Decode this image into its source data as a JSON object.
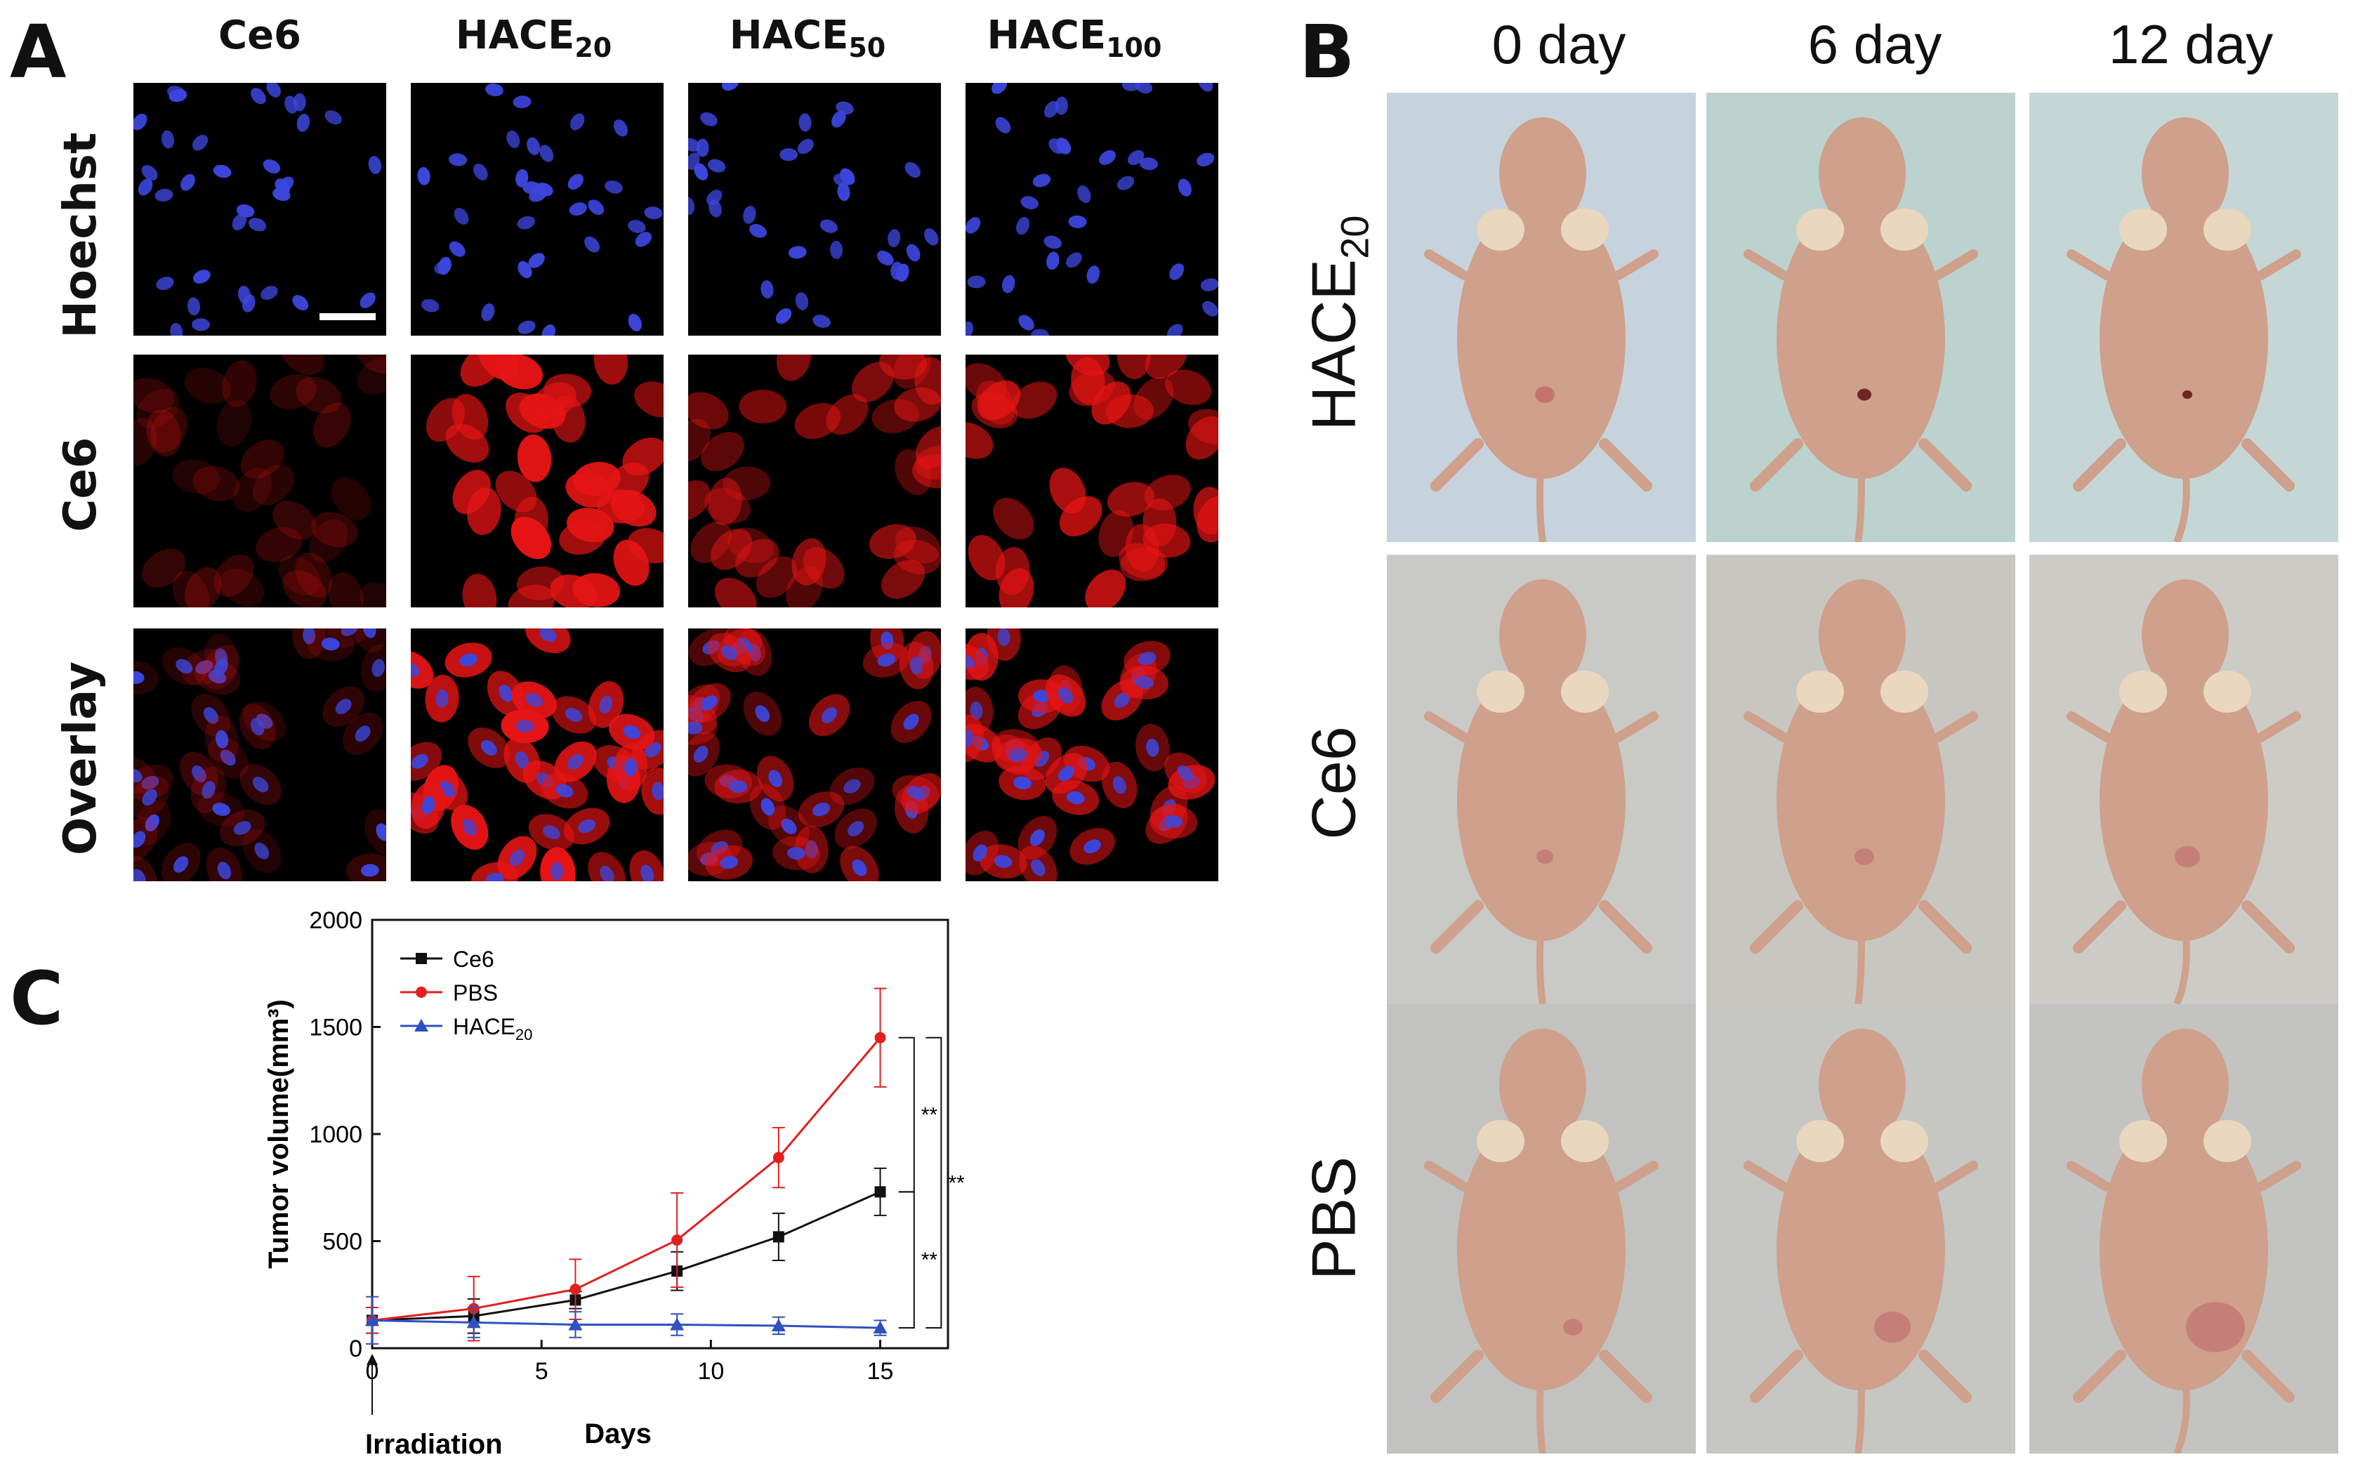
{
  "panels": {
    "a": "A",
    "b": "B",
    "c": "C"
  },
  "panel_a": {
    "columns": [
      {
        "base": "Ce6",
        "sub": ""
      },
      {
        "base": "HACE",
        "sub": "20"
      },
      {
        "base": "HACE",
        "sub": "50"
      },
      {
        "base": "HACE",
        "sub": "100"
      }
    ],
    "rows": [
      "Hoechst",
      "Ce6",
      "Overlay"
    ]
  },
  "panel_b": {
    "days": [
      "0 day",
      "6 day",
      "12 day"
    ],
    "rows": [
      {
        "base": "HACE",
        "sub": "20"
      },
      {
        "base": "Ce6",
        "sub": ""
      },
      {
        "base": "PBS",
        "sub": ""
      }
    ]
  },
  "chart_data": {
    "type": "line",
    "xlabel": "Days",
    "ylabel": "Tumor volume(mm³)",
    "xlim": [
      0,
      17
    ],
    "ylim": [
      0,
      2000
    ],
    "x_ticks": [
      0,
      5,
      10,
      15
    ],
    "y_ticks": [
      0,
      500,
      1000,
      1500,
      2000
    ],
    "annotation": "Irradiation",
    "significance": [
      "**",
      "**",
      "**"
    ],
    "legend_position": "top-left",
    "x": [
      0,
      3,
      6,
      9,
      12,
      15
    ],
    "series": [
      {
        "name": "Ce6",
        "name_sub": "",
        "color": "#111111",
        "marker": "square",
        "values": [
          130,
          150,
          225,
          360,
          520,
          730
        ],
        "errors": [
          60,
          80,
          40,
          90,
          110,
          110
        ]
      },
      {
        "name": "PBS",
        "name_sub": "",
        "color": "#e02020",
        "marker": "circle",
        "values": [
          130,
          185,
          275,
          505,
          890,
          1450
        ],
        "errors": [
          60,
          150,
          140,
          220,
          140,
          230
        ]
      },
      {
        "name": "HACE",
        "name_sub": "20",
        "color": "#3050c0",
        "marker": "triangle",
        "values": [
          130,
          120,
          110,
          110,
          105,
          95
        ],
        "errors": [
          110,
          70,
          60,
          50,
          40,
          35
        ]
      }
    ]
  }
}
